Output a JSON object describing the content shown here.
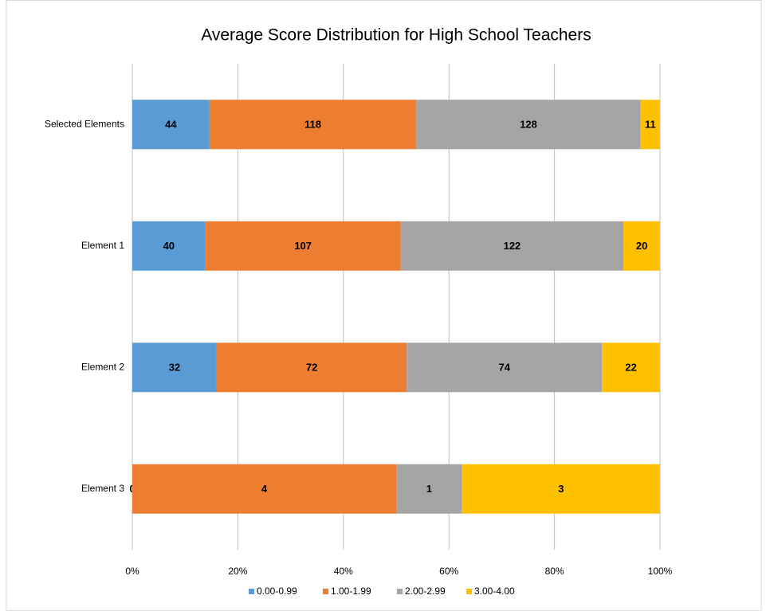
{
  "chart_data": {
    "type": "bar",
    "orientation": "horizontal",
    "stacking": "percent",
    "title": "Average Score Distribution for High School Teachers",
    "categories": [
      "Selected Elements",
      "Element 1",
      "Element 2",
      "Element 3"
    ],
    "series": [
      {
        "name": "0.00-0.99",
        "color": "#5b9bd5",
        "values": [
          44,
          40,
          32,
          0
        ]
      },
      {
        "name": "1.00-1.99",
        "color": "#ed7d31",
        "values": [
          118,
          107,
          72,
          4
        ]
      },
      {
        "name": "2.00-2.99",
        "color": "#a5a5a5",
        "values": [
          128,
          122,
          74,
          1
        ]
      },
      {
        "name": "3.00-4.00",
        "color": "#ffc000",
        "values": [
          11,
          20,
          22,
          3
        ]
      }
    ],
    "xlim": [
      0,
      100
    ],
    "xticks": [
      {
        "value": 0,
        "label": "0%"
      },
      {
        "value": 20,
        "label": "20%"
      },
      {
        "value": 40,
        "label": "40%"
      },
      {
        "value": 60,
        "label": "60%"
      },
      {
        "value": 80,
        "label": "80%"
      },
      {
        "value": 100,
        "label": "100%"
      }
    ],
    "grid": true,
    "legend": "bottom"
  }
}
